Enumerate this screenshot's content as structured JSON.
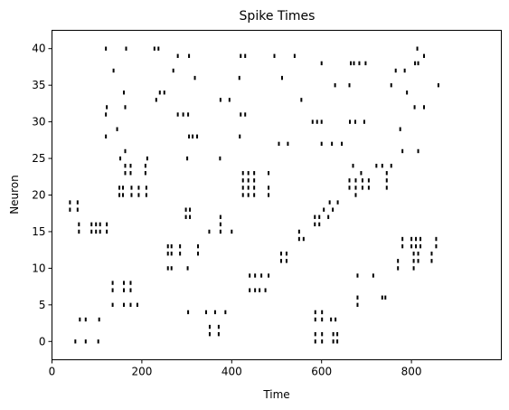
{
  "chart_data": {
    "type": "scatter",
    "title": "Spike Times",
    "xlabel": "Time",
    "ylabel": "Neuron",
    "xlim": [
      0,
      1000
    ],
    "ylim": [
      -2.5,
      42.5
    ],
    "x_ticks": [
      0,
      200,
      400,
      600,
      800
    ],
    "y_ticks": [
      0,
      5,
      10,
      15,
      20,
      25,
      30,
      35,
      40
    ],
    "grid": false,
    "marker": "vertical-line",
    "spikes": [
      {
        "neuron": 0,
        "times": [
          52,
          75,
          103,
          586,
          601,
          626,
          635
        ]
      },
      {
        "neuron": 1,
        "times": [
          351,
          371,
          586,
          601,
          626,
          635
        ]
      },
      {
        "neuron": 2,
        "times": [
          351,
          371
        ]
      },
      {
        "neuron": 3,
        "times": [
          62,
          75,
          105,
          586,
          601,
          621,
          631
        ]
      },
      {
        "neuron": 4,
        "times": [
          303,
          343,
          363,
          386,
          586,
          601
        ]
      },
      {
        "neuron": 5,
        "times": [
          135,
          160,
          175,
          190,
          680
        ]
      },
      {
        "neuron": 6,
        "times": [
          680,
          735,
          742
        ]
      },
      {
        "neuron": 7,
        "times": [
          135,
          160,
          175,
          440,
          452,
          462,
          475
        ]
      },
      {
        "neuron": 8,
        "times": [
          135,
          160,
          175
        ]
      },
      {
        "neuron": 9,
        "times": [
          440,
          452,
          466,
          482,
          680,
          715
        ]
      },
      {
        "neuron": 10,
        "times": [
          258,
          266,
          302,
          770,
          805
        ]
      },
      {
        "neuron": 11,
        "times": [
          510,
          522,
          770,
          805,
          815,
          845
        ]
      },
      {
        "neuron": 12,
        "times": [
          258,
          266,
          285,
          325,
          510,
          522,
          805,
          815,
          845
        ]
      },
      {
        "neuron": 13,
        "times": [
          258,
          266,
          285,
          325,
          780,
          800,
          810,
          820,
          855
        ]
      },
      {
        "neuron": 14,
        "times": [
          550,
          560,
          780,
          800,
          810,
          820,
          855
        ]
      },
      {
        "neuron": 15,
        "times": [
          60,
          88,
          98,
          107,
          122,
          350,
          375,
          400,
          550
        ]
      },
      {
        "neuron": 16,
        "times": [
          60,
          88,
          98,
          107,
          122,
          375,
          585,
          595
        ]
      },
      {
        "neuron": 17,
        "times": [
          298,
          307,
          375,
          585,
          595,
          615
        ]
      },
      {
        "neuron": 18,
        "times": [
          40,
          57,
          298,
          307,
          605,
          625
        ]
      },
      {
        "neuron": 19,
        "times": [
          40,
          57,
          618,
          636
        ]
      },
      {
        "neuron": 20,
        "times": [
          150,
          158,
          177,
          193,
          210,
          425,
          437,
          450,
          482,
          676
        ]
      },
      {
        "neuron": 21,
        "times": [
          150,
          158,
          177,
          193,
          210,
          425,
          437,
          450,
          482,
          662,
          676,
          691,
          705,
          745
        ]
      },
      {
        "neuron": 22,
        "times": [
          425,
          437,
          450,
          662,
          676,
          691,
          705,
          745
        ]
      },
      {
        "neuron": 23,
        "times": [
          163,
          175,
          208,
          425,
          437,
          450,
          482,
          688,
          745
        ]
      },
      {
        "neuron": 24,
        "times": [
          163,
          175,
          208,
          670,
          722,
          735,
          755
        ]
      },
      {
        "neuron": 25,
        "times": [
          152,
          212,
          301,
          374
        ]
      },
      {
        "neuron": 26,
        "times": [
          163,
          780,
          815
        ]
      },
      {
        "neuron": 27,
        "times": [
          505,
          525,
          600,
          623,
          645
        ]
      },
      {
        "neuron": 28,
        "times": [
          120,
          305,
          313,
          323,
          418
        ]
      },
      {
        "neuron": 29,
        "times": [
          145,
          775
        ]
      },
      {
        "neuron": 30,
        "times": [
          580,
          590,
          600,
          663,
          675,
          695
        ]
      },
      {
        "neuron": 31,
        "times": [
          120,
          280,
          292,
          303,
          420,
          430
        ]
      },
      {
        "neuron": 32,
        "times": [
          122,
          163,
          807,
          828
        ]
      },
      {
        "neuron": 33,
        "times": [
          232,
          375,
          395,
          555
        ]
      },
      {
        "neuron": 34,
        "times": [
          160,
          240,
          250,
          790
        ]
      },
      {
        "neuron": 35,
        "times": [
          630,
          662,
          755,
          860
        ]
      },
      {
        "neuron": 36,
        "times": [
          318,
          417,
          512
        ]
      },
      {
        "neuron": 37,
        "times": [
          137,
          270,
          765,
          785
        ]
      },
      {
        "neuron": 38,
        "times": [
          600,
          665,
          672,
          684,
          698,
          808,
          815
        ]
      },
      {
        "neuron": 39,
        "times": [
          280,
          305,
          420,
          430,
          495,
          540,
          828
        ]
      },
      {
        "neuron": 40,
        "times": [
          120,
          165,
          228,
          237,
          813
        ]
      }
    ]
  }
}
